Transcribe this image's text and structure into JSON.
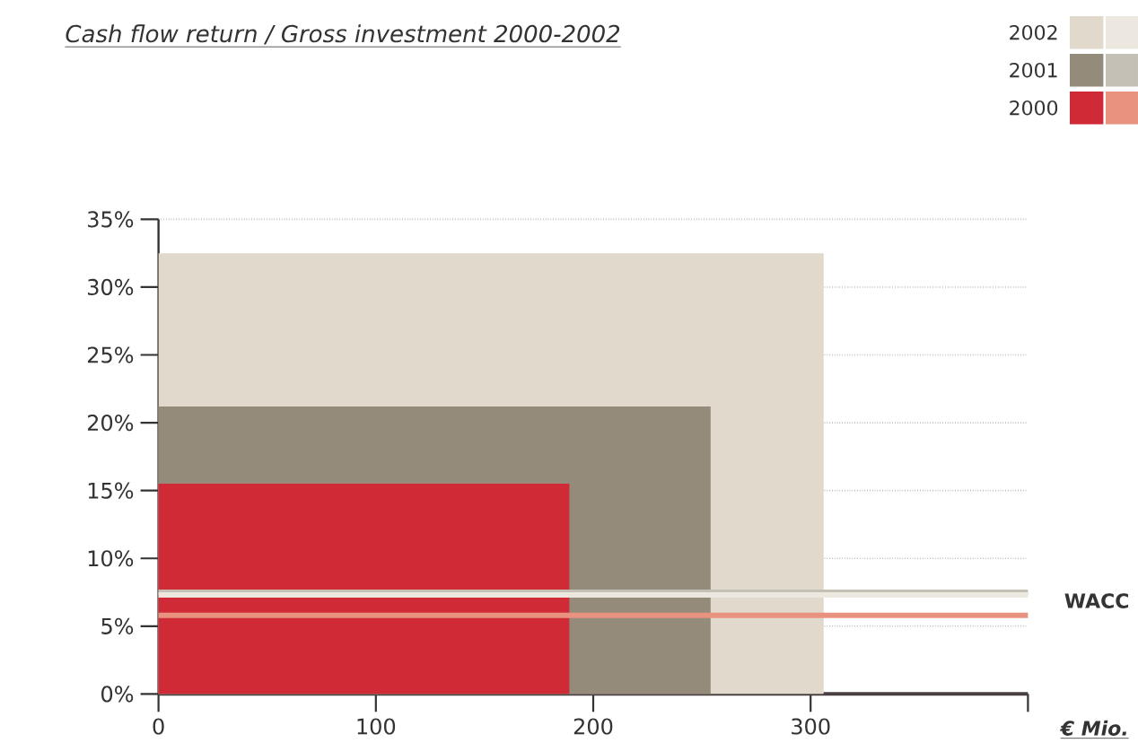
{
  "chart_data": {
    "type": "area",
    "title": "Cash flow return / Gross investment 2000-2002",
    "xlabel": "€ Mio.",
    "series": [
      {
        "name": "2002",
        "color": "#e0d9cc",
        "x": [
          0,
          306
        ],
        "values": [
          32.5,
          32.5
        ]
      },
      {
        "name": "2001",
        "color": "#948b7b",
        "x": [
          0,
          254
        ],
        "values": [
          21.2,
          21.2
        ]
      },
      {
        "name": "2000",
        "color": "#d12a37",
        "x": [
          0,
          189
        ],
        "values": [
          15.5,
          15.5
        ]
      }
    ],
    "ref_lines": [
      {
        "axis": "y",
        "value": 7.3,
        "color": "#ece8e0"
      },
      {
        "axis": "y",
        "value": 7.5,
        "color": "#c5c0b5",
        "label": "WACC"
      },
      {
        "axis": "y",
        "value": 5.8,
        "color": "#e8927f"
      }
    ],
    "xlim": [
      0,
      400
    ],
    "xticks": [
      0,
      100,
      200,
      300,
      {
        "value": 400,
        "label": null
      }
    ],
    "ylim": [
      0,
      35
    ],
    "yticks": [
      {
        "value": 0,
        "label": "0%"
      },
      {
        "value": 5,
        "label": "5%"
      },
      {
        "value": 10,
        "label": "10%"
      },
      {
        "value": 15,
        "label": "15%"
      },
      {
        "value": 20,
        "label": "20%"
      },
      {
        "value": 25,
        "label": "25%"
      },
      {
        "value": 30,
        "label": "30%"
      },
      {
        "value": 35,
        "label": "35%"
      }
    ],
    "grid": "y",
    "legend": "top right"
  }
}
